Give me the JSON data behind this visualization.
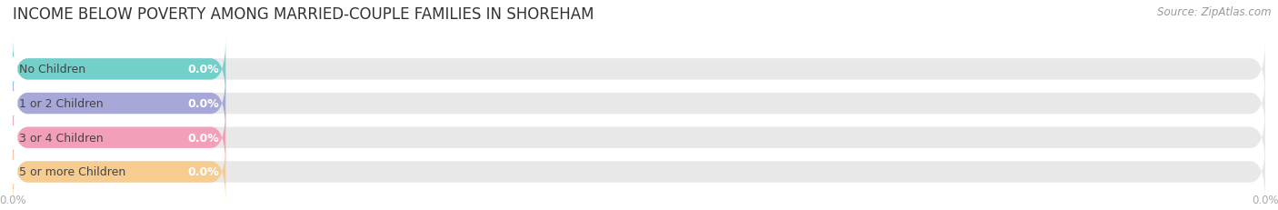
{
  "title": "INCOME BELOW POVERTY AMONG MARRIED-COUPLE FAMILIES IN SHOREHAM",
  "source": "Source: ZipAtlas.com",
  "categories": [
    "No Children",
    "1 or 2 Children",
    "3 or 4 Children",
    "5 or more Children"
  ],
  "values": [
    0.0,
    0.0,
    0.0,
    0.0
  ],
  "bar_colors": [
    "#72cfc9",
    "#a8a8d8",
    "#f2a0b8",
    "#f7cc90"
  ],
  "bg_bar_color": "#e8e8e8",
  "background_color": "#ffffff",
  "title_color": "#333333",
  "source_color": "#999999",
  "label_color": "#444444",
  "value_color": "#ffffff",
  "tick_color": "#aaaaaa",
  "gridline_color": "#cccccc",
  "title_fontsize": 12,
  "source_fontsize": 8.5,
  "label_fontsize": 9,
  "value_fontsize": 9,
  "tick_fontsize": 8.5,
  "xlim": [
    0.0,
    100.0
  ],
  "xtick_positions": [
    0.0,
    50.0,
    100.0
  ],
  "xtick_labels": [
    "0.0%",
    "0.0%",
    "0.0%"
  ]
}
